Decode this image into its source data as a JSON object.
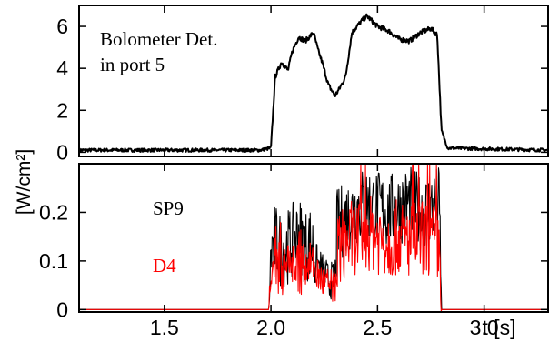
{
  "chart_data": [
    {
      "type": "line",
      "panel": "top",
      "annotation": [
        "Bolometer Det.",
        "in port 5"
      ],
      "xlim": [
        1.1,
        3.3
      ],
      "ylim": [
        -0.2,
        7.0
      ],
      "yticks": [
        0,
        2,
        4,
        6
      ],
      "ytick_labels": [
        "0",
        "2",
        "4",
        "6"
      ],
      "grid": false,
      "series": [
        {
          "color": "#000000",
          "x": [
            1.1,
            1.95,
            2.0,
            2.02,
            2.05,
            2.08,
            2.1,
            2.13,
            2.16,
            2.2,
            2.22,
            2.24,
            2.27,
            2.3,
            2.32,
            2.35,
            2.38,
            2.42,
            2.45,
            2.5,
            2.55,
            2.6,
            2.65,
            2.7,
            2.75,
            2.78,
            2.8,
            2.83,
            3.3
          ],
          "y": [
            0.1,
            0.1,
            0.2,
            3.6,
            4.3,
            3.9,
            4.8,
            5.5,
            5.3,
            5.7,
            4.9,
            4.3,
            3.2,
            2.7,
            3.0,
            3.6,
            5.7,
            6.2,
            6.5,
            6.0,
            5.8,
            5.4,
            5.3,
            5.7,
            5.9,
            5.6,
            1.0,
            0.2,
            0.1
          ]
        }
      ]
    },
    {
      "type": "line",
      "panel": "bottom",
      "xlim": [
        1.1,
        3.3
      ],
      "ylim": [
        -0.005,
        0.3
      ],
      "yticks": [
        0,
        0.1,
        0.2
      ],
      "ytick_labels": [
        "0",
        "0.1",
        "0.2"
      ],
      "xticks": [
        1.5,
        2.0,
        2.5,
        3.0
      ],
      "xtick_labels": [
        "1.5",
        "2.0",
        "2.5",
        "3.0"
      ],
      "xlabel": "t [s]",
      "shared_ylabel": "[W/cm²]",
      "grid": false,
      "series": [
        {
          "name": "SP9",
          "color": "#000000",
          "x": [
            1.1,
            1.99,
            2.0,
            2.02,
            2.05,
            2.08,
            2.1,
            2.13,
            2.16,
            2.19,
            2.21,
            2.24,
            2.27,
            2.3,
            2.31,
            2.35,
            2.4,
            2.45,
            2.5,
            2.55,
            2.6,
            2.65,
            2.7,
            2.75,
            2.79,
            2.8,
            3.3
          ],
          "y": [
            0.0,
            0.0,
            0.12,
            0.14,
            0.12,
            0.13,
            0.14,
            0.16,
            0.13,
            0.14,
            0.1,
            0.08,
            0.06,
            0.06,
            0.17,
            0.19,
            0.21,
            0.22,
            0.21,
            0.2,
            0.21,
            0.22,
            0.2,
            0.21,
            0.22,
            0.0,
            0.0
          ]
        },
        {
          "name": "D4",
          "color": "#ff0000",
          "x": [
            1.1,
            1.99,
            2.0,
            2.03,
            2.06,
            2.1,
            2.13,
            2.16,
            2.19,
            2.22,
            2.26,
            2.3,
            2.31,
            2.35,
            2.4,
            2.45,
            2.5,
            2.55,
            2.6,
            2.65,
            2.7,
            2.75,
            2.79,
            2.8,
            3.3
          ],
          "y": [
            0.0,
            0.0,
            0.09,
            0.11,
            0.1,
            0.09,
            0.11,
            0.09,
            0.1,
            0.07,
            0.05,
            0.04,
            0.12,
            0.14,
            0.15,
            0.16,
            0.15,
            0.14,
            0.15,
            0.14,
            0.15,
            0.14,
            0.13,
            0.0,
            0.0
          ]
        }
      ]
    }
  ]
}
